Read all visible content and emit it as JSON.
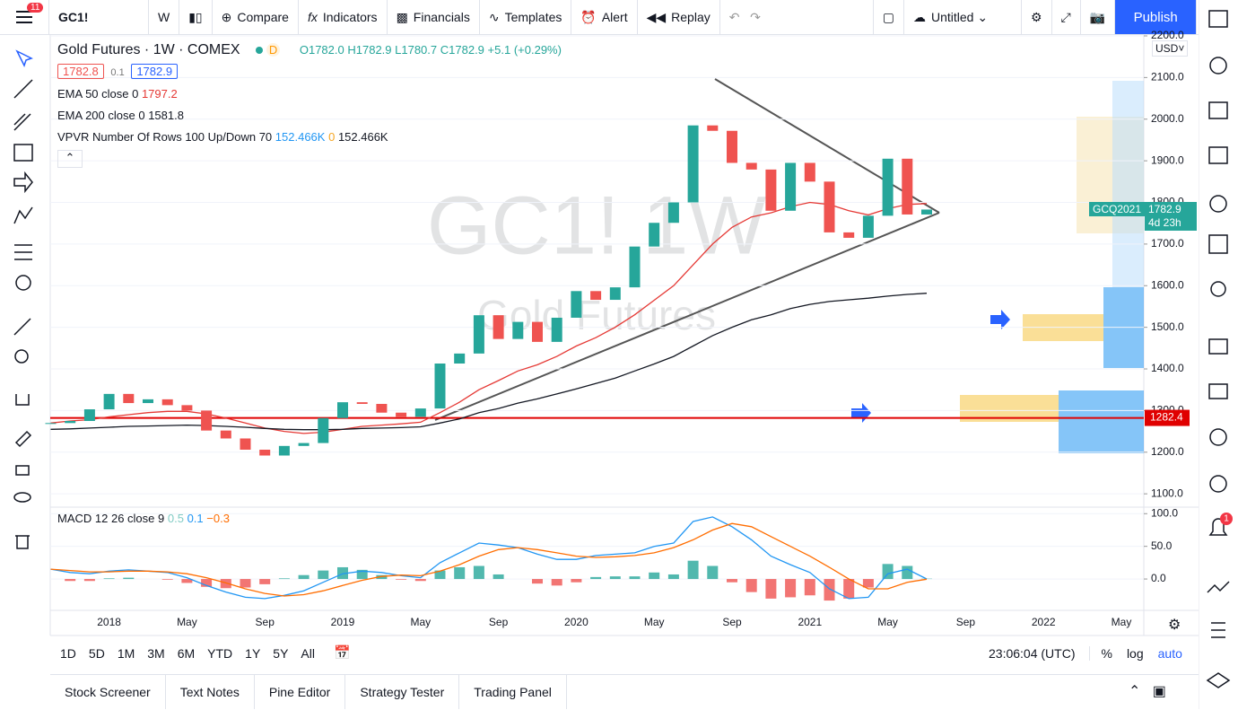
{
  "toolbar": {
    "badge": "11",
    "symbol": "GC1!",
    "interval": "W",
    "compare": "Compare",
    "indicators": "Indicators",
    "financials": "Financials",
    "templates": "Templates",
    "alert": "Alert",
    "replay": "Replay",
    "layout": "Untitled",
    "publish": "Publish"
  },
  "legend": {
    "title": "Gold Futures · 1W · COMEX",
    "flag": "D",
    "open": "O1782.0",
    "high": "H1782.9",
    "low": "L1780.7",
    "close": "C1782.9",
    "change": "+5.1 (+0.29%)",
    "bid": "1782.8",
    "spread": "0.1",
    "ask": "1782.9",
    "ema50": "EMA 50 close 0",
    "ema200": "EMA 200 close 0",
    "vpvr": "VPVR Number Of Rows 100 Up/Down 70",
    "vpvr_up": "152.466K",
    "vpvr_mid": "0",
    "vpvr_down": "152.466K",
    "macd": "MACD 12 26 close 9",
    "macd_hist": "0.5",
    "macd_line": "0.1",
    "macd_signal": "−0.3"
  },
  "watermark": {
    "symbol": "GC1! 1W",
    "name": "Gold Futures"
  },
  "price_axis": {
    "currency": "USD"
  },
  "last_price": {
    "symbol": "GCQ2021",
    "price": "1782.9",
    "countdown": "4d 23h"
  },
  "horizontal_line": {
    "value": 1282.4,
    "color": "#e00000"
  },
  "chart_data": [
    {
      "type": "candlestick",
      "color_up": "#26a69a",
      "color_down": "#ef5350",
      "categories": [
        null,
        null,
        null,
        "2018",
        null,
        null,
        null,
        "May",
        null,
        null,
        null,
        "Sep",
        null,
        null,
        null,
        "2019",
        null,
        null,
        null,
        "May",
        null,
        null,
        null,
        "Sep",
        null,
        null,
        null,
        "2020",
        null,
        null,
        null,
        "May",
        null,
        null,
        null,
        "Sep",
        null,
        null,
        null,
        "2021",
        null,
        null,
        null,
        "May",
        null,
        null,
        null,
        "Sep",
        null,
        null,
        null,
        "2022",
        null,
        null,
        null,
        "May"
      ],
      "values": [
        1270,
        1275,
        1303,
        1340,
        1318,
        1327,
        1313,
        1300,
        1252,
        1233,
        1206,
        1192,
        1215,
        1222,
        1282,
        1320,
        1316,
        1295,
        1285,
        1305,
        1413,
        1437,
        1529,
        1472,
        1513,
        1465,
        1523,
        1587,
        1566,
        1596,
        1694,
        1751,
        1800,
        1985,
        1972,
        1895,
        1879,
        1780,
        1895,
        1850,
        1728,
        1715,
        1768,
        1905,
        1771,
        1782.9,
        null,
        null,
        null,
        null,
        null,
        null,
        null,
        null,
        null,
        null
      ],
      "series": [
        {
          "name": "EMA 50 close 0",
          "color": "#e53935",
          "values": [
            1270,
            1275,
            1278,
            1285,
            1290,
            1295,
            1298,
            1298,
            1292,
            1282,
            1270,
            1258,
            1250,
            1245,
            1248,
            1255,
            1262,
            1265,
            1268,
            1272,
            1295,
            1320,
            1350,
            1372,
            1395,
            1410,
            1430,
            1455,
            1475,
            1500,
            1530,
            1565,
            1600,
            1650,
            1700,
            1740,
            1765,
            1775,
            1790,
            1800,
            1795,
            1780,
            1770,
            1785,
            1795,
            1797.2,
            null,
            null,
            null,
            null,
            null,
            null,
            null,
            null,
            null,
            null
          ]
        },
        {
          "name": "EMA 200 close 0",
          "color": "#131722",
          "values": [
            1255,
            1256,
            1258,
            1260,
            1262,
            1263,
            1264,
            1265,
            1264,
            1262,
            1260,
            1257,
            1255,
            1254,
            1254,
            1255,
            1257,
            1258,
            1259,
            1261,
            1270,
            1280,
            1295,
            1305,
            1318,
            1328,
            1340,
            1352,
            1365,
            1378,
            1395,
            1412,
            1430,
            1455,
            1480,
            1500,
            1518,
            1530,
            1545,
            1555,
            1562,
            1566,
            1570,
            1575,
            1579,
            1581.8,
            null,
            null,
            null,
            null,
            null,
            null,
            null,
            null,
            null,
            null
          ]
        }
      ],
      "ylim": [
        1068,
        2200
      ],
      "yticks": [
        {
          "value": 1100,
          "label": "1100.0"
        },
        {
          "value": 1200,
          "label": "1200.0"
        },
        {
          "value": 1300,
          "label": "1300.0"
        },
        {
          "value": 1400,
          "label": "1400.0"
        },
        {
          "value": 1500,
          "label": "1500.0"
        },
        {
          "value": 1600,
          "label": "1600.0"
        },
        {
          "value": 1700,
          "label": "1700.0"
        },
        {
          "value": 1800,
          "label": "1800.0"
        },
        {
          "value": 1900,
          "label": "1900.0"
        },
        {
          "value": 2000,
          "label": "2000.0"
        },
        {
          "value": 2100,
          "label": "2100.0"
        },
        {
          "value": 2200,
          "label": "2200.0"
        }
      ]
    },
    {
      "type": "macd",
      "series": [
        {
          "name": "Histogram",
          "color": "#26a69a",
          "color_neg": "#ef5350",
          "values": [
            0,
            -3,
            -3,
            1,
            2,
            0,
            -1,
            -6,
            -12,
            -14,
            -13,
            -8,
            1,
            6,
            13,
            18,
            14,
            6,
            -1,
            -3,
            13,
            18,
            20,
            7,
            0,
            -7,
            -10,
            -5,
            3,
            4,
            4,
            10,
            7,
            28,
            20,
            -5,
            -20,
            -30,
            -28,
            -25,
            -33,
            -30,
            -13,
            23,
            20,
            0.5,
            null,
            null,
            null,
            null,
            null,
            null,
            null,
            null,
            null,
            null
          ]
        },
        {
          "name": "MACD",
          "color": "#2196f3",
          "values": [
            15,
            10,
            8,
            12,
            14,
            12,
            10,
            2,
            -10,
            -20,
            -28,
            -30,
            -25,
            -18,
            -5,
            8,
            12,
            10,
            5,
            2,
            25,
            40,
            55,
            52,
            48,
            38,
            30,
            30,
            36,
            38,
            40,
            50,
            55,
            88,
            95,
            80,
            60,
            35,
            22,
            10,
            -15,
            -30,
            -28,
            8,
            15,
            0.1,
            null,
            null,
            null,
            null,
            null,
            null,
            null,
            null,
            null,
            null
          ]
        },
        {
          "name": "Signal",
          "color": "#ff6d00",
          "values": [
            15,
            13,
            11,
            11,
            12,
            12,
            11,
            8,
            2,
            -6,
            -15,
            -22,
            -26,
            -24,
            -18,
            -10,
            -2,
            4,
            6,
            5,
            12,
            22,
            35,
            45,
            48,
            45,
            40,
            35,
            33,
            34,
            36,
            40,
            48,
            60,
            75,
            85,
            80,
            65,
            50,
            35,
            18,
            0,
            -15,
            -15,
            -5,
            -0.3,
            null,
            null,
            null,
            null,
            null,
            null,
            null,
            null,
            null,
            null
          ]
        }
      ],
      "ylim": [
        -48,
        110
      ],
      "yticks": [
        {
          "value": 0,
          "label": "0.0"
        },
        {
          "value": 50,
          "label": "50.0"
        },
        {
          "value": 100,
          "label": "100.0"
        }
      ]
    }
  ],
  "bottom": {
    "ranges": [
      "1D",
      "5D",
      "1M",
      "3M",
      "6M",
      "YTD",
      "1Y",
      "5Y",
      "All"
    ],
    "time": "23:06:04 (UTC)",
    "percent": "%",
    "log": "log",
    "auto": "auto"
  },
  "tabs": [
    "Stock Screener",
    "Text Notes",
    "Pine Editor",
    "Strategy Tester",
    "Trading Panel"
  ],
  "alerts_badge": "1"
}
